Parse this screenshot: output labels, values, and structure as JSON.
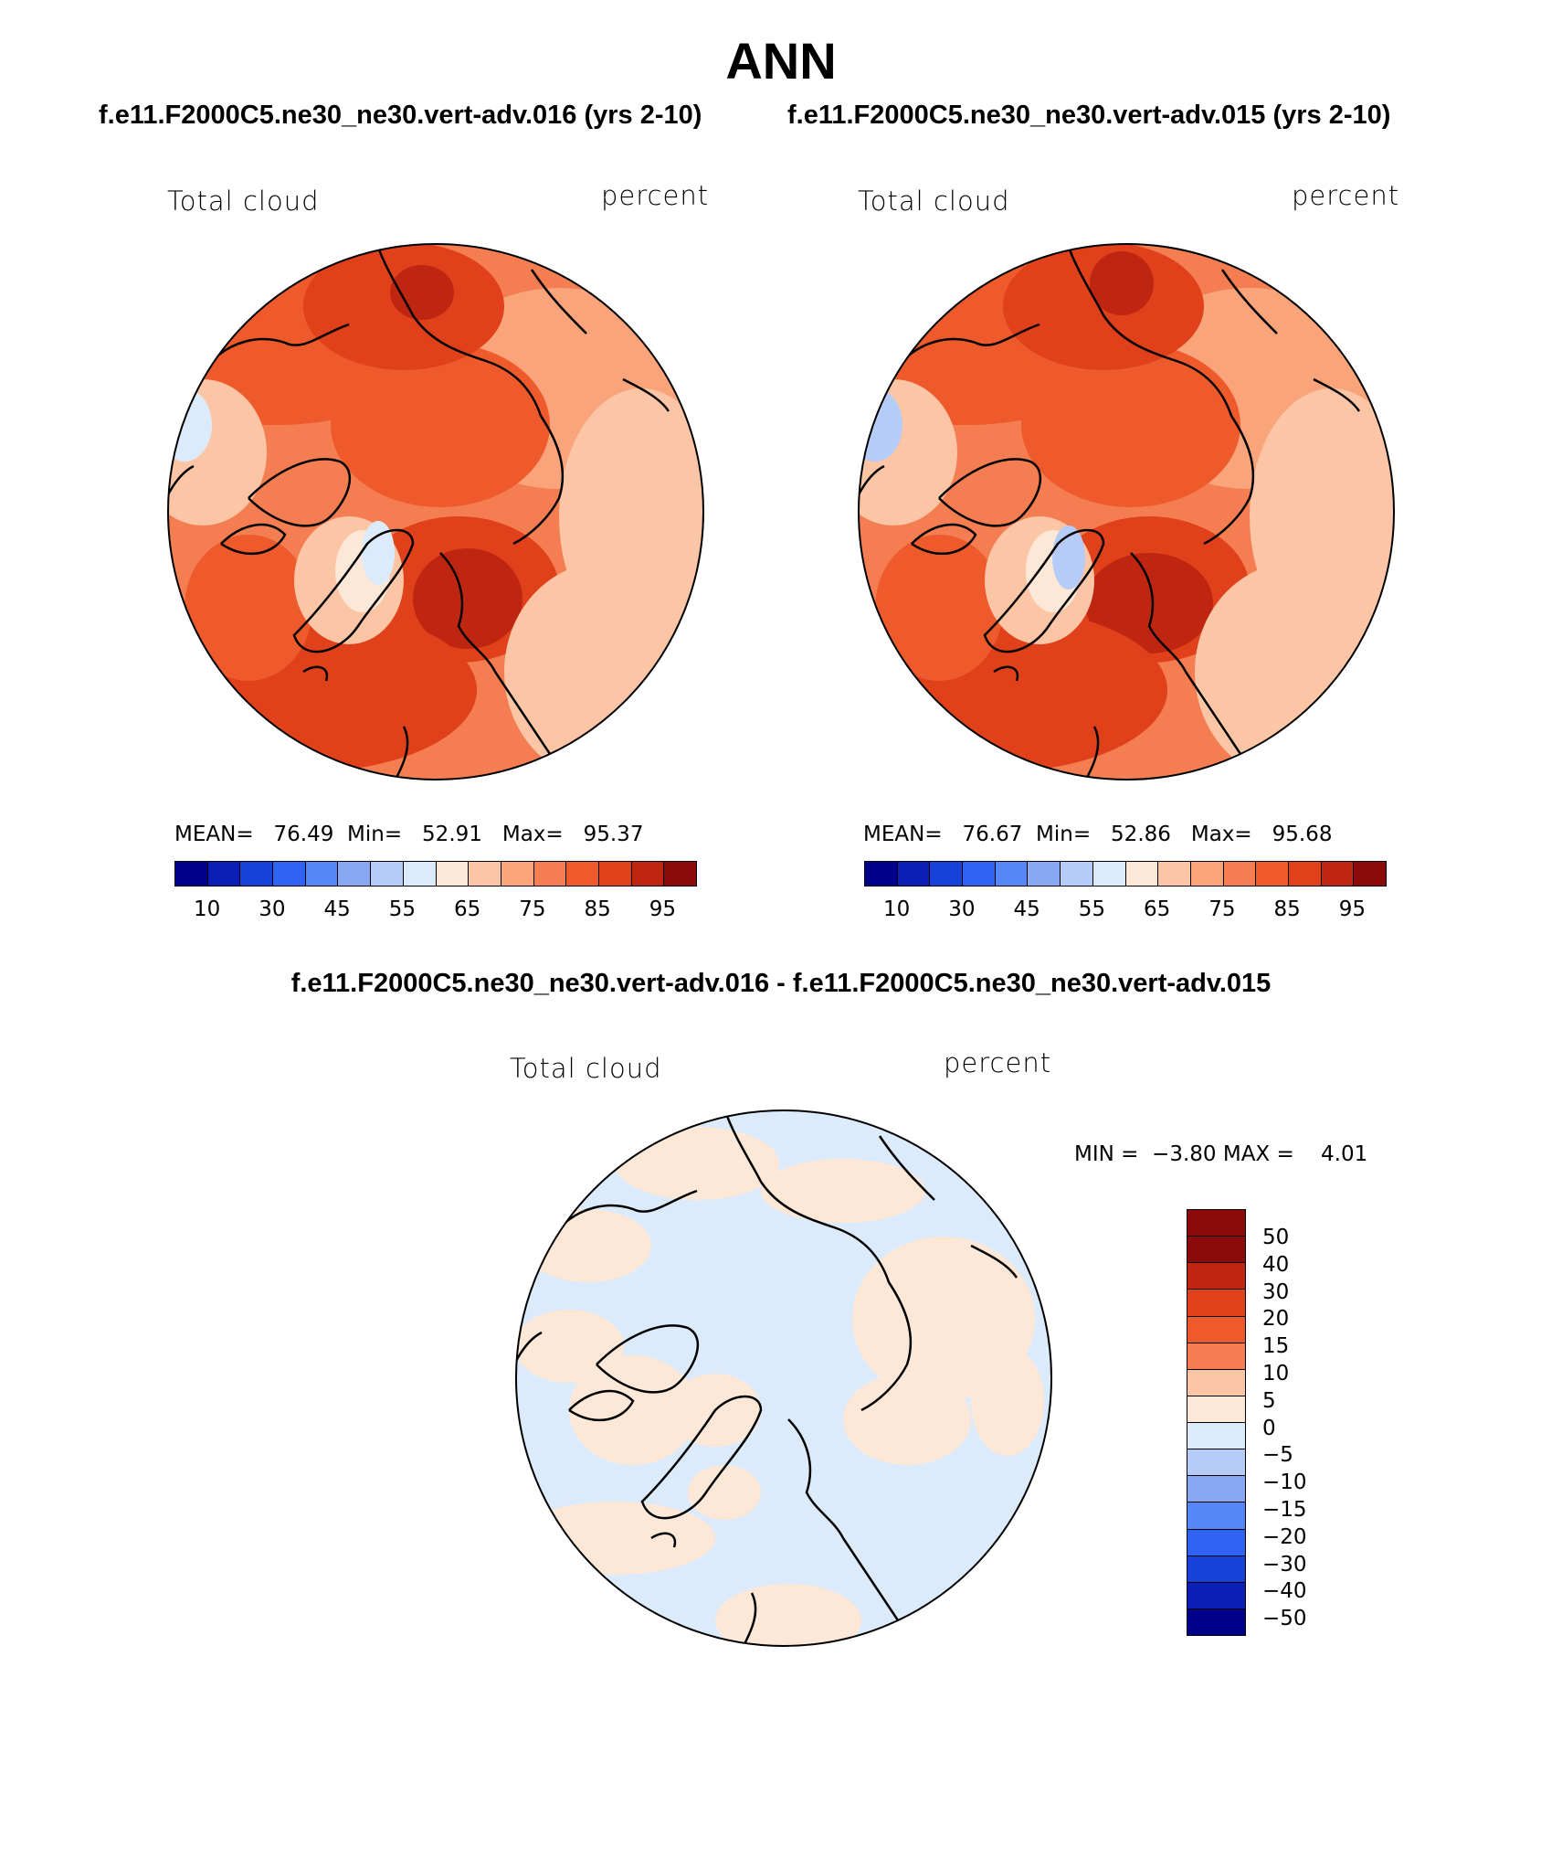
{
  "title": "ANN",
  "panels": [
    {
      "run_title": "f.e11.F2000C5.ne30_ne30.vert-adv.016 (yrs 2-10)",
      "left_label": "Total cloud",
      "right_label": "percent",
      "stats": {
        "mean_label": "MEAN=",
        "mean": "76.49",
        "min_label": "Min=",
        "min": "52.91",
        "max_label": "Max=",
        "max": "95.37"
      }
    },
    {
      "run_title": "f.e11.F2000C5.ne30_ne30.vert-adv.015 (yrs 2-10)",
      "left_label": "Total cloud",
      "right_label": "percent",
      "stats": {
        "mean_label": "MEAN=",
        "mean": "76.67",
        "min_label": "Min=",
        "min": "52.86",
        "max_label": "Max=",
        "max": "95.68"
      }
    }
  ],
  "diff": {
    "title": "f.e11.F2000C5.ne30_ne30.vert-adv.016 - f.e11.F2000C5.ne30_ne30.vert-adv.015",
    "left_label": "Total cloud",
    "right_label": "percent",
    "minmax": {
      "min_label": "MIN =",
      "min": "−3.80",
      "max_label": "MAX =",
      "max": "4.01"
    }
  },
  "colorbar_abs": {
    "colors": [
      "#00008b",
      "#0a1fb4",
      "#1841d9",
      "#2f63f2",
      "#5587f6",
      "#88a8f3",
      "#b6ccf8",
      "#dcebfc",
      "#fde8d7",
      "#fcc6a6",
      "#f9a47a",
      "#f47e52",
      "#ee5a2c",
      "#e0401a",
      "#bf2611",
      "#8b0a0a"
    ],
    "ticks": [
      "10",
      "30",
      "45",
      "55",
      "65",
      "75",
      "85",
      "95"
    ]
  },
  "colorbar_diff": {
    "colors": [
      "#8b0a0a",
      "#bf2611",
      "#e0401a",
      "#ee5a2c",
      "#f47e52",
      "#fcc6a6",
      "#fde8d7",
      "#dcebfc",
      "#b6ccf8",
      "#88a8f3",
      "#5587f6",
      "#2f63f2",
      "#1841d9",
      "#0a1fb4",
      "#00008b"
    ],
    "ticks": [
      "50",
      "40",
      "30",
      "20",
      "15",
      "10",
      "5",
      "0",
      "−5",
      "−10",
      "−15",
      "−20",
      "−30",
      "−40",
      "−50"
    ]
  }
}
